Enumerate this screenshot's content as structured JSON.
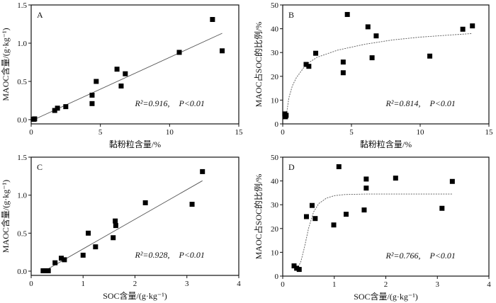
{
  "chart_data": [
    {
      "type": "scatter",
      "panel_label": "A",
      "xlabel": "黏粉粒含量/%",
      "ylabel": "MAOC含量/(g·kg⁻¹)",
      "xlim": [
        0,
        15
      ],
      "ylim": [
        0,
        1.5
      ],
      "xticks": [
        0,
        5,
        10,
        15
      ],
      "xtick_labels": [
        "0",
        "5",
        "10",
        "15"
      ],
      "yticks": [
        0,
        0.5,
        1.0,
        1.5
      ],
      "ytick_labels": [
        "0.0",
        "0.5",
        "1.0",
        "1.5"
      ],
      "annotation": {
        "r2": "R²=0.916,",
        "p": "P<0.01"
      },
      "points": [
        [
          0.15,
          0.005
        ],
        [
          0.2,
          0.005
        ],
        [
          0.25,
          0.01
        ],
        [
          1.7,
          0.12
        ],
        [
          1.9,
          0.15
        ],
        [
          2.5,
          0.17
        ],
        [
          4.4,
          0.32
        ],
        [
          4.4,
          0.21
        ],
        [
          4.7,
          0.5
        ],
        [
          6.2,
          0.66
        ],
        [
          6.5,
          0.44
        ],
        [
          6.8,
          0.6
        ],
        [
          10.7,
          0.88
        ],
        [
          13.1,
          1.31
        ],
        [
          13.8,
          0.9
        ]
      ],
      "fit": {
        "type": "linear",
        "style": "solid",
        "points": [
          [
            0.2,
            0.0
          ],
          [
            13.8,
            1.13
          ]
        ]
      }
    },
    {
      "type": "scatter",
      "panel_label": "B",
      "xlabel": "黏粉粒含量/%",
      "ylabel": "MAOC占SOC的比例/%",
      "xlim": [
        0,
        15
      ],
      "ylim": [
        0,
        50
      ],
      "xticks": [
        0,
        5,
        10,
        15
      ],
      "xtick_labels": [
        "0",
        "5",
        "10",
        "15"
      ],
      "yticks": [
        0,
        10,
        20,
        30,
        40,
        50
      ],
      "ytick_labels": [
        "0",
        "10",
        "20",
        "30",
        "40",
        "50"
      ],
      "annotation": {
        "r2": "R²=0.814,",
        "p": "P<0.01"
      },
      "points": [
        [
          0.15,
          4.2
        ],
        [
          0.2,
          3.0
        ],
        [
          0.25,
          3.6
        ],
        [
          1.7,
          25
        ],
        [
          1.9,
          24.2
        ],
        [
          2.4,
          29.7
        ],
        [
          4.4,
          26
        ],
        [
          4.4,
          21.5
        ],
        [
          4.7,
          46
        ],
        [
          6.2,
          40.8
        ],
        [
          6.5,
          27.8
        ],
        [
          6.8,
          37
        ],
        [
          10.7,
          28.5
        ],
        [
          13.1,
          39.8
        ],
        [
          13.8,
          41.2
        ]
      ],
      "fit": {
        "type": "logarithmic",
        "style": "dashed",
        "points": [
          [
            0.3,
            5
          ],
          [
            0.45,
            11
          ],
          [
            0.7,
            16
          ],
          [
            1.0,
            19.5
          ],
          [
            1.7,
            25
          ],
          [
            2.5,
            28
          ],
          [
            4,
            31
          ],
          [
            6,
            33.5
          ],
          [
            8,
            35.3
          ],
          [
            10,
            36.5
          ],
          [
            13.8,
            38
          ]
        ]
      }
    },
    {
      "type": "scatter",
      "panel_label": "C",
      "xlabel": "SOC含量/(g·kg⁻¹)",
      "ylabel": "MAOC含量/(g·kg⁻¹)",
      "xlim": [
        0,
        4
      ],
      "ylim": [
        0,
        1.5
      ],
      "xticks": [
        0,
        1,
        2,
        3,
        4
      ],
      "xtick_labels": [
        "0",
        "1",
        "2",
        "3",
        "4"
      ],
      "yticks": [
        0,
        0.5,
        1.0,
        1.5
      ],
      "ytick_labels": [
        "0.0",
        "0.5",
        "1.0",
        "1.5"
      ],
      "annotation": {
        "r2": "R²=0.928,",
        "p": "P<0.01"
      },
      "points": [
        [
          0.23,
          0.005
        ],
        [
          0.28,
          0.005
        ],
        [
          0.33,
          0.005
        ],
        [
          0.46,
          0.11
        ],
        [
          0.58,
          0.17
        ],
        [
          0.64,
          0.15
        ],
        [
          1.0,
          0.21
        ],
        [
          1.1,
          0.5
        ],
        [
          1.24,
          0.32
        ],
        [
          1.58,
          0.44
        ],
        [
          1.62,
          0.66
        ],
        [
          1.63,
          0.6
        ],
        [
          2.2,
          0.9
        ],
        [
          3.1,
          0.88
        ],
        [
          3.3,
          1.31
        ]
      ],
      "fit": {
        "type": "linear",
        "style": "solid",
        "points": [
          [
            0.3,
            0.02
          ],
          [
            3.3,
            1.19
          ]
        ]
      }
    },
    {
      "type": "scatter",
      "panel_label": "D",
      "xlabel": "SOC含量/(g·kg⁻¹)",
      "ylabel": "MAOC占SOC的比例/%",
      "xlim": [
        0,
        4
      ],
      "ylim": [
        0,
        50
      ],
      "xticks": [
        0,
        1,
        2,
        3,
        4
      ],
      "xtick_labels": [
        "0",
        "1",
        "2",
        "3",
        "4"
      ],
      "yticks": [
        0,
        10,
        20,
        30,
        40,
        50
      ],
      "ytick_labels": [
        "0",
        "10",
        "20",
        "30",
        "40",
        "50"
      ],
      "annotation": {
        "r2": "R²=0.766,",
        "p": "P<0.01"
      },
      "points": [
        [
          0.22,
          4.3
        ],
        [
          0.27,
          3.3
        ],
        [
          0.32,
          2.8
        ],
        [
          0.46,
          25
        ],
        [
          0.57,
          29.7
        ],
        [
          0.63,
          24.2
        ],
        [
          0.99,
          21.5
        ],
        [
          1.09,
          46
        ],
        [
          1.23,
          26
        ],
        [
          1.58,
          27.8
        ],
        [
          1.62,
          40.8
        ],
        [
          1.62,
          37
        ],
        [
          2.19,
          41.2
        ],
        [
          3.09,
          28.5
        ],
        [
          3.29,
          39.8
        ]
      ],
      "fit": {
        "type": "sigmoid",
        "style": "dashed",
        "points": [
          [
            0.28,
            3
          ],
          [
            0.35,
            6
          ],
          [
            0.42,
            12
          ],
          [
            0.5,
            20
          ],
          [
            0.6,
            27
          ],
          [
            0.7,
            30.5
          ],
          [
            0.85,
            32.8
          ],
          [
            1.0,
            33.8
          ],
          [
            1.2,
            34.3
          ],
          [
            1.6,
            34.5
          ],
          [
            3.3,
            34.5
          ]
        ]
      }
    }
  ]
}
